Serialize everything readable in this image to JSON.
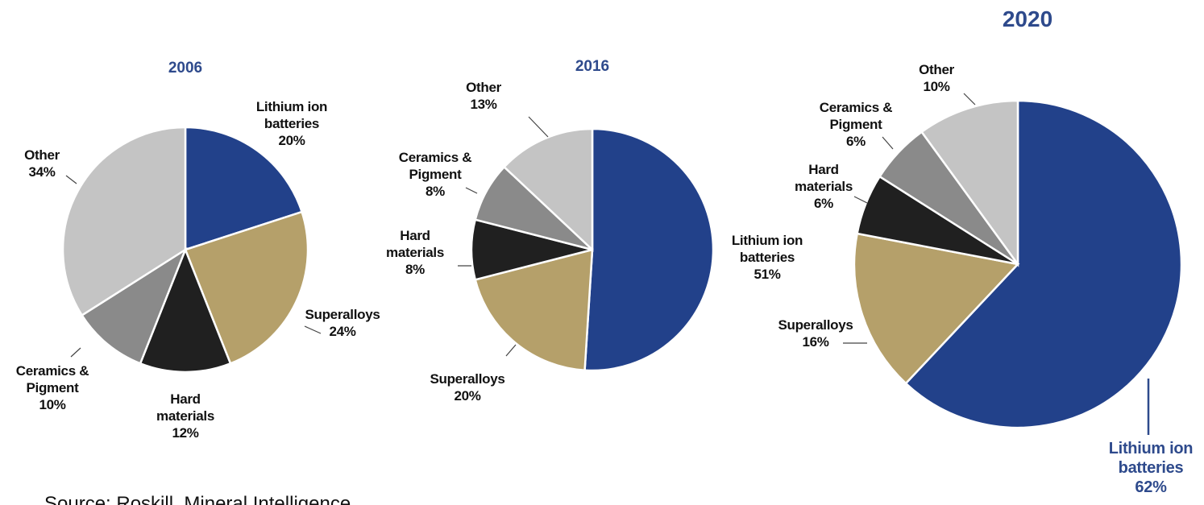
{
  "chart_data": [
    {
      "type": "pie",
      "title": "2006",
      "categories": [
        "Lithium ion batteries",
        "Superalloys",
        "Hard materials",
        "Ceramics & Pigment",
        "Other"
      ],
      "values": [
        20,
        24,
        12,
        10,
        34
      ],
      "value_labels": [
        "20%",
        "24%",
        "12%",
        "10%",
        "34%"
      ],
      "colors": [
        "#22418a",
        "#b5a06a",
        "#202020",
        "#8a8a8a",
        "#c4c4c4"
      ]
    },
    {
      "type": "pie",
      "title": "2016",
      "categories": [
        "Lithium ion batteries",
        "Superalloys",
        "Hard materials",
        "Ceramics & Pigment",
        "Other"
      ],
      "values": [
        51,
        20,
        8,
        8,
        13
      ],
      "value_labels": [
        "51%",
        "20%",
        "8%",
        "8%",
        "13%"
      ],
      "colors": [
        "#22418a",
        "#b5a06a",
        "#202020",
        "#8a8a8a",
        "#c4c4c4"
      ]
    },
    {
      "type": "pie",
      "title": "2020",
      "categories": [
        "Lithium ion batteries",
        "Superalloys",
        "Hard materials",
        "Ceramics & Pigment",
        "Other"
      ],
      "values": [
        62,
        16,
        6,
        6,
        10
      ],
      "value_labels": [
        "62%",
        "16%",
        "6%",
        "6%",
        "10%"
      ],
      "colors": [
        "#22418a",
        "#b5a06a",
        "#202020",
        "#8a8a8a",
        "#c4c4c4"
      ]
    }
  ],
  "source": "Source: Roskill, Mineral Intelligence"
}
